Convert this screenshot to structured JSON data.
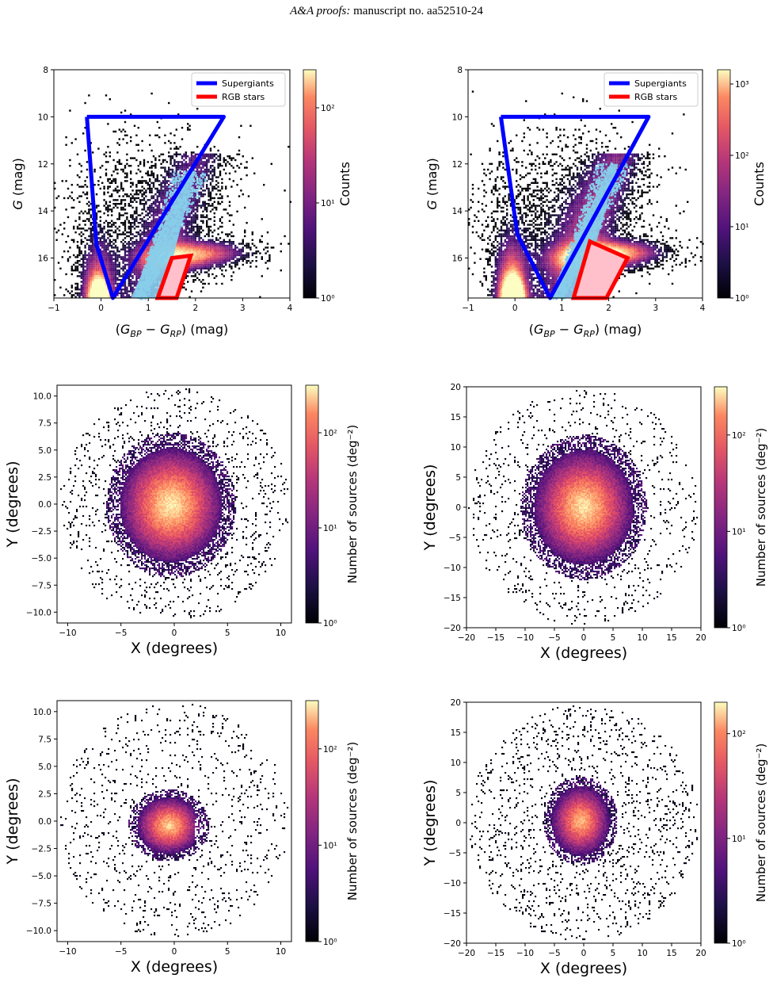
{
  "header": {
    "journal": "A&A proofs:",
    "manuscript": "manuscript no. aa52510-24"
  },
  "colors": {
    "supergiants": "#0000ff",
    "rgb": "#ff0000",
    "rgb_fill": "#ffc0cb",
    "density": "#87ceeb",
    "colormap": "magma"
  },
  "chart_data": [
    {
      "id": "cmd-left",
      "type": "heatmap",
      "title": "",
      "xlabel": "(G_BP − G_RP) (mag)",
      "ylabel": "G  (mag)",
      "xlim": [
        -1,
        4
      ],
      "ylim": [
        17.7,
        8
      ],
      "xticks": [
        "−1",
        "0",
        "1",
        "2",
        "3",
        "4"
      ],
      "xtick_values": [
        -1,
        0,
        1,
        2,
        3,
        4
      ],
      "yticks": [
        "8",
        "10",
        "12",
        "14",
        "16"
      ],
      "ytick_values": [
        8,
        10,
        12,
        14,
        16
      ],
      "colorbar": {
        "label": "Counts",
        "ticks": [
          "10^0",
          "10^1",
          "10^2"
        ],
        "log_range": [
          0,
          2.4
        ]
      },
      "legend": {
        "placement": "top-right",
        "entries": [
          {
            "name": "Supergiants"
          },
          {
            "name": "RGB stars"
          }
        ]
      },
      "supergiants_polygon": [
        [
          -0.3,
          10
        ],
        [
          2.6,
          10
        ],
        [
          0.25,
          17.7
        ],
        [
          -0.1,
          15.4
        ]
      ],
      "rgb_polygon": [
        [
          1.2,
          17.7
        ],
        [
          1.5,
          16.0
        ],
        [
          1.9,
          15.9
        ],
        [
          1.6,
          17.7
        ]
      ],
      "density_band": {
        "start": [
          0.8,
          17.7
        ],
        "end": [
          1.9,
          12.3
        ]
      }
    },
    {
      "id": "cmd-right",
      "type": "heatmap",
      "title": "",
      "xlabel": "(G_BP − G_RP) (mag)",
      "ylabel": "G  (mag)",
      "xlim": [
        -1,
        4
      ],
      "ylim": [
        17.7,
        8
      ],
      "xticks": [
        "−1",
        "0",
        "1",
        "2",
        "3",
        "4"
      ],
      "xtick_values": [
        -1,
        0,
        1,
        2,
        3,
        4
      ],
      "yticks": [
        "8",
        "10",
        "12",
        "14",
        "16"
      ],
      "ytick_values": [
        8,
        10,
        12,
        14,
        16
      ],
      "colorbar": {
        "label": "Counts",
        "ticks": [
          "10^0",
          "10^1",
          "10^2",
          "10^3"
        ],
        "log_range": [
          0,
          3.2
        ]
      },
      "legend": {
        "placement": "top-right",
        "entries": [
          {
            "name": "Supergiants"
          },
          {
            "name": "RGB stars"
          }
        ]
      },
      "supergiants_polygon": [
        [
          -0.3,
          10
        ],
        [
          2.85,
          10
        ],
        [
          0.75,
          17.7
        ],
        [
          0.05,
          15.0
        ]
      ],
      "rgb_polygon": [
        [
          1.25,
          17.7
        ],
        [
          1.6,
          15.3
        ],
        [
          2.4,
          16.0
        ],
        [
          1.95,
          17.7
        ]
      ],
      "density_band": {
        "start": [
          0.9,
          17.7
        ],
        "end": [
          2.1,
          12.0
        ]
      }
    },
    {
      "id": "sky-mid-left",
      "type": "heatmap",
      "title": "",
      "xlabel": "X (degrees)",
      "ylabel": "Y (degrees)",
      "xlim": [
        -11,
        11
      ],
      "ylim": [
        -11,
        11
      ],
      "xticks": [
        "−10",
        "−5",
        "0",
        "5",
        "10"
      ],
      "xtick_values": [
        -10,
        -5,
        0,
        5,
        10
      ],
      "yticks": [
        "−10.0",
        "−7.5",
        "−5.0",
        "−2.5",
        "0.0",
        "2.5",
        "5.0",
        "7.5",
        "10.0"
      ],
      "ytick_values": [
        -10,
        -7.5,
        -5,
        -2.5,
        0,
        2.5,
        5,
        7.5,
        10
      ],
      "colorbar": {
        "label": "Number of sources (deg^−2)",
        "ticks": [
          "10^0",
          "10^1",
          "10^2"
        ],
        "log_range": [
          0,
          2.5
        ]
      },
      "blob": {
        "cx": -0.3,
        "cy": -0.1,
        "rx": 4.8,
        "ry": 5.3,
        "peak": 2.45
      }
    },
    {
      "id": "sky-mid-right",
      "type": "heatmap",
      "title": "",
      "xlabel": "X (degrees)",
      "ylabel": "Y (degrees)",
      "xlim": [
        -20,
        20
      ],
      "ylim": [
        -20,
        20
      ],
      "xticks": [
        "−20",
        "−15",
        "−10",
        "−5",
        "0",
        "5",
        "10",
        "15",
        "20"
      ],
      "xtick_values": [
        -20,
        -15,
        -10,
        -5,
        0,
        5,
        10,
        15,
        20
      ],
      "yticks": [
        "−20",
        "−15",
        "−10",
        "−5",
        "0",
        "5",
        "10",
        "15",
        "20"
      ],
      "ytick_values": [
        -20,
        -15,
        -10,
        -5,
        0,
        5,
        10,
        15,
        20
      ],
      "colorbar": {
        "label": "Number of sources (deg^−2)",
        "ticks": [
          "10^0",
          "10^1",
          "10^2"
        ],
        "log_range": [
          0,
          2.5
        ]
      },
      "blob": {
        "cx": 0,
        "cy": 0,
        "rx": 8.5,
        "ry": 9.5,
        "peak": 2.4
      }
    },
    {
      "id": "sky-bottom-left",
      "type": "heatmap",
      "title": "",
      "xlabel": "X (degrees)",
      "ylabel": "Y (degrees)",
      "xlim": [
        -11,
        11
      ],
      "ylim": [
        -11,
        11
      ],
      "xticks": [
        "−10",
        "−5",
        "0",
        "5",
        "10"
      ],
      "xtick_values": [
        -10,
        -5,
        0,
        5,
        10
      ],
      "yticks": [
        "−10.0",
        "−7.5",
        "−5.0",
        "−2.5",
        "0.0",
        "2.5",
        "5.0",
        "7.5",
        "10.0"
      ],
      "ytick_values": [
        -10,
        -7.5,
        -5,
        -2.5,
        0,
        2.5,
        5,
        7.5,
        10
      ],
      "colorbar": {
        "label": "Number of sources (deg^−2)",
        "ticks": [
          "10^0",
          "10^1",
          "10^2"
        ],
        "log_range": [
          0,
          2.5
        ]
      },
      "blob": {
        "cx": -0.5,
        "cy": -0.4,
        "rx": 3.0,
        "ry": 2.6,
        "peak": 2.3
      }
    },
    {
      "id": "sky-bottom-right",
      "type": "heatmap",
      "title": "",
      "xlabel": "X (degrees)",
      "ylabel": "Y (degrees)",
      "xlim": [
        -20,
        20
      ],
      "ylim": [
        -20,
        20
      ],
      "xticks": [
        "−20",
        "−15",
        "−10",
        "−5",
        "0",
        "5",
        "10",
        "15",
        "20"
      ],
      "xtick_values": [
        -20,
        -15,
        -10,
        -5,
        0,
        5,
        10,
        15,
        20
      ],
      "yticks": [
        "−20",
        "−15",
        "−10",
        "−5",
        "0",
        "5",
        "10",
        "15",
        "20"
      ],
      "ytick_values": [
        -20,
        -15,
        -10,
        -5,
        0,
        5,
        10,
        15,
        20
      ],
      "colorbar": {
        "label": "Number of sources (deg^−2)",
        "ticks": [
          "10^0",
          "10^1",
          "10^2"
        ],
        "log_range": [
          0,
          2.3
        ]
      },
      "blob": {
        "cx": -0.5,
        "cy": 0.3,
        "rx": 5.0,
        "ry": 5.8,
        "peak": 2.2
      }
    }
  ]
}
